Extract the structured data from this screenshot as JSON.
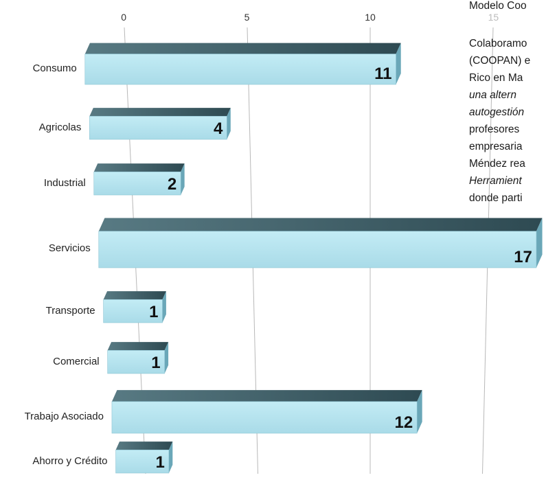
{
  "chart_data": {
    "type": "bar",
    "orientation": "horizontal",
    "style": "3d",
    "categories": [
      "Consumo",
      "Agricolas",
      "Industrial",
      "Servicios",
      "Transporte",
      "Comercial",
      "Trabajo Asociado",
      "Ahorro y Crédito"
    ],
    "values": [
      11,
      4,
      2,
      17,
      1,
      1,
      12,
      1
    ],
    "data_labels": [
      "11",
      "4",
      "2",
      "17",
      "1",
      "1",
      "12",
      "1"
    ],
    "xticks": [
      "0",
      "5",
      "10",
      "15"
    ],
    "xlim": [
      0,
      18
    ],
    "grid": true,
    "title": "",
    "xlabel": "",
    "ylabel": ""
  },
  "colors": {
    "bar_front": "#a9dbe8",
    "bar_top": "#2e4a52",
    "bar_side": "#6aa7b8",
    "grid": "#b8b8b8"
  },
  "side_text": {
    "lines": [
      {
        "text": "Modelo Coo",
        "italic": false
      },
      {
        "text": "Colaboramo",
        "italic": false
      },
      {
        "text": "(COOPAN) e",
        "italic": false
      },
      {
        "text": "Rico  en  Ma",
        "italic": false
      },
      {
        "text": "una  altern",
        "italic": true
      },
      {
        "text": "autogestión",
        "italic": true
      },
      {
        "text": "profesores",
        "italic": false
      },
      {
        "text": "empresaria",
        "italic": false
      },
      {
        "text": "Méndez  rea",
        "italic": false
      },
      {
        "text": "Herramient",
        "italic": true
      },
      {
        "text": "donde parti",
        "italic": false
      }
    ]
  }
}
